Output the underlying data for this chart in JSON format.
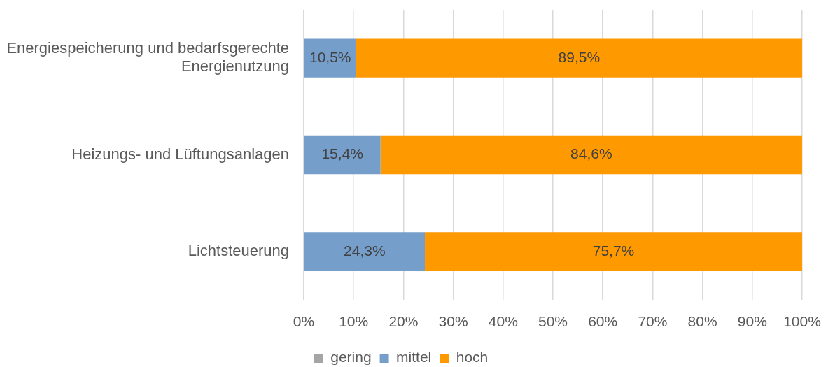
{
  "chart_data": {
    "type": "bar",
    "orientation": "horizontal",
    "stacked": true,
    "categories": [
      "Energiespeicherung und bedarfsgerechte Energienutzung",
      "Heizungs- und Lüftungsanlagen",
      "Lichtsteuerung"
    ],
    "series": [
      {
        "name": "gering",
        "color": "#a5a5a5",
        "values": [
          null,
          null,
          null
        ]
      },
      {
        "name": "mittel",
        "color": "#769ecb",
        "values": [
          10.5,
          15.4,
          24.3
        ],
        "value_labels": [
          "10,5%",
          "15,4%",
          "24,3%"
        ]
      },
      {
        "name": "hoch",
        "color": "#ff9900",
        "values": [
          89.5,
          84.6,
          75.7
        ],
        "value_labels": [
          "89,5%",
          "84,6%",
          "75,7%"
        ]
      }
    ],
    "xlim": [
      0,
      100
    ],
    "xticks": [
      {
        "value": 0,
        "label": "0%"
      },
      {
        "value": 10,
        "label": "10%"
      },
      {
        "value": 20,
        "label": "20%"
      },
      {
        "value": 30,
        "label": "30%"
      },
      {
        "value": 40,
        "label": "40%"
      },
      {
        "value": 50,
        "label": "50%"
      },
      {
        "value": 60,
        "label": "60%"
      },
      {
        "value": 70,
        "label": "70%"
      },
      {
        "value": 80,
        "label": "80%"
      },
      {
        "value": 90,
        "label": "90%"
      },
      {
        "value": 100,
        "label": "100%"
      }
    ],
    "grid": "x",
    "legend": "bottom"
  }
}
